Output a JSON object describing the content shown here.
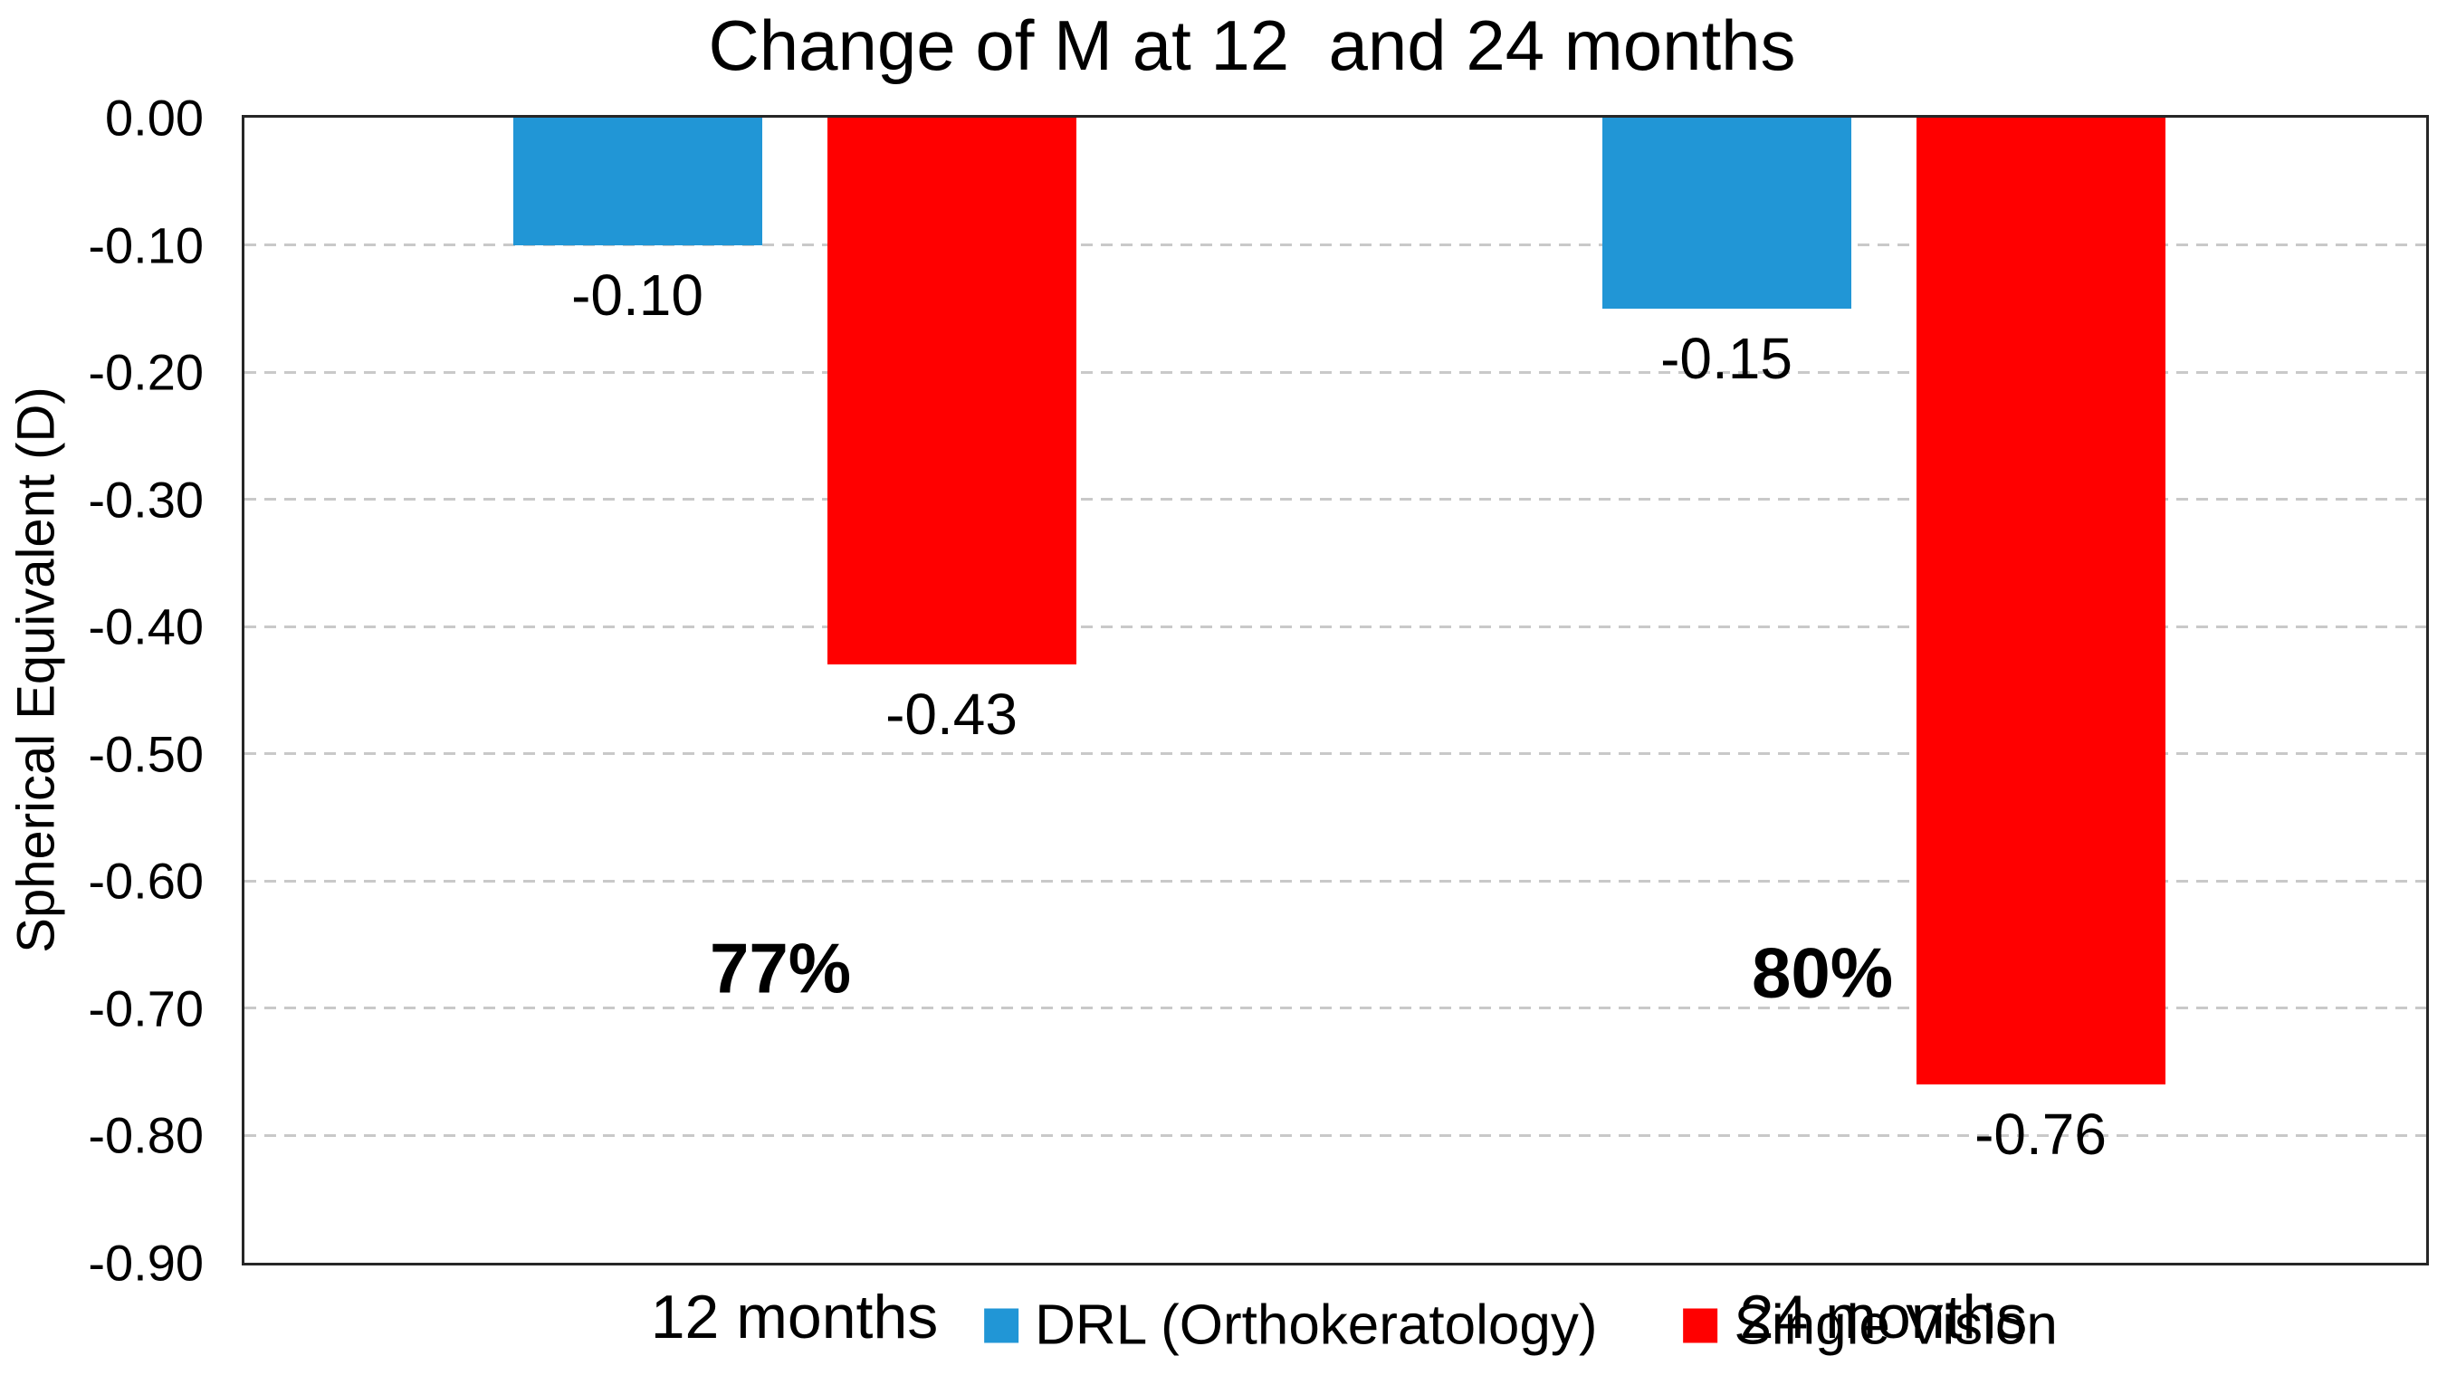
{
  "title": "Change of M at 12  and 24 months",
  "y_axis": {
    "label": "Spherical Equivalent (D)",
    "ticks": [
      "0.00",
      "-0.10",
      "-0.20",
      "-0.30",
      "-0.40",
      "-0.50",
      "-0.60",
      "-0.70",
      "-0.80",
      "-0.90"
    ]
  },
  "colors": {
    "drl_blue": "#2196D6",
    "single_vision_red": "#FF0000",
    "gridline": "#C9C9C9",
    "axis_frame": "#262626",
    "text": "#000000"
  },
  "legend": {
    "items": [
      {
        "label": "DRL (Orthokeratology)",
        "color": "#2196D6"
      },
      {
        "label": "Single Vision",
        "color": "#FF0000"
      }
    ]
  },
  "chart_data": {
    "type": "bar",
    "title": "Change of M at 12  and 24 months",
    "categories": [
      "12 months",
      "24 months"
    ],
    "series": [
      {
        "name": "DRL (Orthokeratology)",
        "color": "#2196D6",
        "values": [
          -0.1,
          -0.15
        ],
        "data_labels": [
          "-0.10",
          "-0.15"
        ]
      },
      {
        "name": "Single Vision",
        "color": "#FF0000",
        "values": [
          -0.43,
          -0.76
        ],
        "data_labels": [
          "-0.43",
          "-0.76"
        ]
      }
    ],
    "annotations": [
      {
        "text": "77%",
        "category": "12 months"
      },
      {
        "text": "80%",
        "category": "24 months"
      }
    ],
    "xlabel": "",
    "ylabel": "Spherical Equivalent (D)",
    "ylim": [
      -0.9,
      0.0
    ],
    "y_tick_step": 0.1,
    "grid": "horizontal-dashed",
    "legend_position": "bottom-inside"
  }
}
